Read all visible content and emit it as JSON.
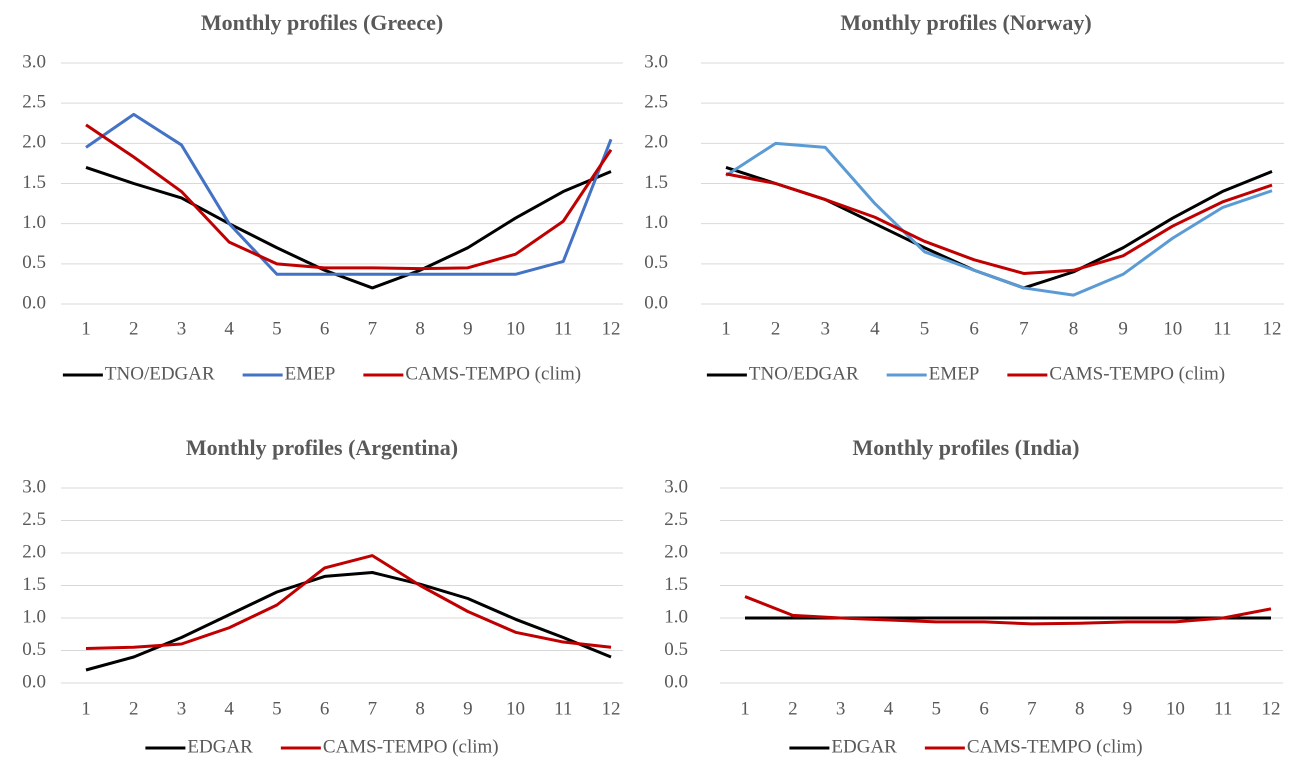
{
  "chart_data": [
    {
      "type": "line",
      "title": "Monthly profiles (Greece)",
      "categories": [
        1,
        2,
        3,
        4,
        5,
        6,
        7,
        8,
        9,
        10,
        11,
        12
      ],
      "ylim": [
        0,
        3
      ],
      "yticks": [
        {
          "value": 0,
          "label": "0.0"
        },
        0.5,
        {
          "value": 1,
          "label": "1.0"
        },
        1.5,
        {
          "value": 2,
          "label": "2.0"
        },
        2.5,
        {
          "value": 3,
          "label": "3.0"
        }
      ],
      "grid": true,
      "series": [
        {
          "name": "TNO/EDGAR",
          "color": "#000000",
          "values": [
            1.7,
            1.5,
            1.32,
            1.0,
            0.7,
            0.42,
            0.2,
            0.42,
            0.7,
            1.07,
            1.4,
            1.65
          ]
        },
        {
          "name": "EMEP",
          "color": "#4472c4",
          "values": [
            1.95,
            2.36,
            1.98,
            1.0,
            0.37,
            0.37,
            0.37,
            0.37,
            0.37,
            0.37,
            0.53,
            2.05
          ]
        },
        {
          "name": "CAMS-TEMPO (clim)",
          "color": "#c00000",
          "values": [
            2.23,
            1.83,
            1.4,
            0.77,
            0.5,
            0.45,
            0.45,
            0.44,
            0.45,
            0.62,
            1.03,
            1.92
          ]
        }
      ]
    },
    {
      "type": "line",
      "title": "Monthly profiles (Norway)",
      "categories": [
        1,
        2,
        3,
        4,
        5,
        6,
        7,
        8,
        9,
        10,
        11,
        12
      ],
      "ylim": [
        0,
        3
      ],
      "yticks": [
        {
          "value": 0,
          "label": "0.0"
        },
        0.5,
        {
          "value": 1,
          "label": "1.0"
        },
        1.5,
        {
          "value": 2,
          "label": "2.0"
        },
        2.5,
        {
          "value": 3,
          "label": "3.0"
        }
      ],
      "grid": true,
      "series": [
        {
          "name": "TNO/EDGAR",
          "color": "#000000",
          "values": [
            1.7,
            1.5,
            1.3,
            1.0,
            0.7,
            0.42,
            0.2,
            0.4,
            0.7,
            1.07,
            1.4,
            1.65
          ]
        },
        {
          "name": "EMEP",
          "color": "#5b9bd5",
          "values": [
            1.6,
            2.0,
            1.95,
            1.25,
            0.65,
            0.42,
            0.2,
            0.11,
            0.37,
            0.82,
            1.2,
            1.41
          ]
        },
        {
          "name": "CAMS-TEMPO (clim)",
          "color": "#c00000",
          "values": [
            1.62,
            1.5,
            1.3,
            1.08,
            0.78,
            0.55,
            0.38,
            0.42,
            0.6,
            0.97,
            1.27,
            1.48
          ]
        }
      ]
    },
    {
      "type": "line",
      "title": "Monthly profiles (Argentina)",
      "categories": [
        1,
        2,
        3,
        4,
        5,
        6,
        7,
        8,
        9,
        10,
        11,
        12
      ],
      "ylim": [
        0,
        3
      ],
      "yticks": [
        {
          "value": 0,
          "label": "0.0"
        },
        0.5,
        {
          "value": 1,
          "label": "1.0"
        },
        1.5,
        {
          "value": 2,
          "label": "2.0"
        },
        2.5,
        {
          "value": 3,
          "label": "3.0"
        }
      ],
      "grid": true,
      "series": [
        {
          "name": "EDGAR",
          "color": "#000000",
          "values": [
            0.2,
            0.4,
            0.7,
            1.05,
            1.4,
            1.64,
            1.7,
            1.52,
            1.3,
            0.98,
            0.7,
            0.4
          ]
        },
        {
          "name": "CAMS-TEMPO (clim)",
          "color": "#c00000",
          "values": [
            0.53,
            0.55,
            0.6,
            0.85,
            1.2,
            1.77,
            1.96,
            1.5,
            1.1,
            0.78,
            0.63,
            0.55
          ]
        }
      ]
    },
    {
      "type": "line",
      "title": "Monthly profiles (India)",
      "categories": [
        1,
        2,
        3,
        4,
        5,
        6,
        7,
        8,
        9,
        10,
        11,
        12
      ],
      "ylim": [
        0,
        3
      ],
      "yticks": [
        {
          "value": 0,
          "label": "0.0"
        },
        0.5,
        {
          "value": 1,
          "label": "1.0"
        },
        1.5,
        {
          "value": 2,
          "label": "2.0"
        },
        2.5,
        {
          "value": 3,
          "label": "3.0"
        }
      ],
      "grid": true,
      "series": [
        {
          "name": "EDGAR",
          "color": "#000000",
          "values": [
            1,
            1,
            1,
            1,
            1,
            1,
            1,
            1,
            1,
            1,
            1,
            1
          ]
        },
        {
          "name": "CAMS-TEMPO (clim)",
          "color": "#c00000",
          "values": [
            1.33,
            1.04,
            1.0,
            0.97,
            0.94,
            0.94,
            0.91,
            0.92,
            0.94,
            0.94,
            1.0,
            1.14
          ]
        }
      ]
    }
  ]
}
